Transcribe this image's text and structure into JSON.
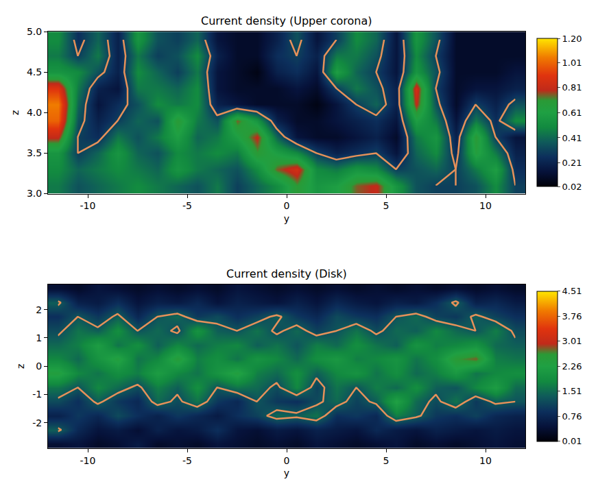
{
  "chart_data": [
    {
      "type": "heatmap",
      "title": "Current density (Upper corona)",
      "x_label": "y",
      "y_label": "z",
      "xlim": [
        -12,
        12
      ],
      "xticks": [
        -10,
        -5,
        0,
        5,
        10
      ],
      "ylim": [
        3,
        5
      ],
      "yticks": [
        {
          "value": 3,
          "label": "3.0"
        },
        3.5,
        {
          "value": 4,
          "label": "4.0"
        },
        4.5,
        {
          "value": 5,
          "label": "5.0"
        }
      ],
      "x": [
        -11.5,
        -10.5,
        -9.5,
        -8.5,
        -7.5,
        -6.5,
        -5.5,
        -4.5,
        -3.5,
        -2.5,
        -1.5,
        -0.5,
        0.5,
        1.5,
        2.5,
        3.5,
        4.5,
        5.5,
        6.5,
        7.5,
        8.5,
        9.5,
        10.5,
        11.5
      ],
      "y": [
        3.1,
        3.3,
        3.5,
        3.7,
        3.9,
        4.1,
        4.3,
        4.5,
        4.7,
        4.9
      ],
      "z": [
        [
          0.45,
          0.35,
          0.4,
          0.45,
          0.5,
          0.45,
          0.4,
          0.35,
          0.45,
          0.3,
          0.4,
          0.5,
          0.7,
          0.55,
          0.6,
          0.75,
          0.8,
          0.55,
          0.35,
          0.3,
          0.3,
          0.35,
          0.5,
          0.3
        ],
        [
          0.5,
          0.4,
          0.45,
          0.5,
          0.45,
          0.4,
          0.55,
          0.45,
          0.4,
          0.35,
          0.5,
          0.75,
          0.85,
          0.5,
          0.45,
          0.55,
          0.5,
          0.3,
          0.35,
          0.4,
          0.3,
          0.45,
          0.6,
          0.25
        ],
        [
          0.55,
          0.3,
          0.4,
          0.55,
          0.4,
          0.35,
          0.5,
          0.45,
          0.5,
          0.45,
          0.7,
          0.6,
          0.5,
          0.3,
          0.2,
          0.25,
          0.3,
          0.15,
          0.4,
          0.5,
          0.25,
          0.65,
          0.45,
          0.2
        ],
        [
          0.8,
          0.3,
          0.25,
          0.45,
          0.35,
          0.45,
          0.6,
          0.4,
          0.45,
          0.6,
          0.8,
          0.4,
          0.15,
          0.1,
          0.1,
          0.15,
          0.2,
          0.1,
          0.45,
          0.55,
          0.2,
          0.7,
          0.3,
          0.15
        ],
        [
          1.0,
          0.35,
          0.2,
          0.3,
          0.4,
          0.35,
          0.7,
          0.45,
          0.35,
          0.75,
          0.55,
          0.2,
          0.1,
          0.1,
          0.15,
          0.2,
          0.25,
          0.15,
          0.6,
          0.45,
          0.15,
          0.45,
          0.25,
          0.5
        ],
        [
          1.05,
          0.4,
          0.15,
          0.25,
          0.35,
          0.5,
          0.45,
          0.5,
          0.2,
          0.15,
          0.1,
          0.1,
          0.1,
          0.05,
          0.15,
          0.3,
          0.4,
          0.2,
          0.8,
          0.35,
          0.1,
          0.3,
          0.2,
          0.35
        ],
        [
          0.9,
          0.45,
          0.2,
          0.15,
          0.45,
          0.45,
          0.4,
          0.5,
          0.15,
          0.1,
          0.1,
          0.1,
          0.15,
          0.1,
          0.3,
          0.45,
          0.35,
          0.2,
          0.85,
          0.3,
          0.1,
          0.15,
          0.15,
          0.2
        ],
        [
          0.55,
          0.5,
          0.35,
          0.2,
          0.5,
          0.4,
          0.3,
          0.45,
          0.15,
          0.1,
          0.05,
          0.2,
          0.25,
          0.15,
          0.6,
          0.4,
          0.3,
          0.15,
          0.55,
          0.35,
          0.1,
          0.1,
          0.1,
          0.15
        ],
        [
          0.45,
          0.3,
          0.45,
          0.2,
          0.45,
          0.3,
          0.35,
          0.5,
          0.2,
          0.1,
          0.1,
          0.25,
          0.3,
          0.2,
          0.45,
          0.45,
          0.35,
          0.15,
          0.5,
          0.3,
          0.1,
          0.1,
          0.1,
          0.1
        ],
        [
          0.5,
          0.25,
          0.4,
          0.2,
          0.55,
          0.35,
          0.3,
          0.4,
          0.15,
          0.1,
          0.1,
          0.2,
          0.35,
          0.15,
          0.3,
          0.5,
          0.4,
          0.15,
          0.55,
          0.35,
          0.1,
          0.1,
          0.1,
          0.1
        ]
      ],
      "colorbar_range": [
        0.02,
        1.2
      ],
      "colorbar_ticks": [
        0.02,
        0.21,
        0.41,
        0.61,
        0.81,
        1.01,
        {
          "value": 1.2,
          "label": "1.20"
        }
      ],
      "contour_level": 0.3
    },
    {
      "type": "heatmap",
      "title": "Current density (Disk)",
      "x_label": "y",
      "y_label": "z",
      "xlim": [
        -12,
        12
      ],
      "xticks": [
        -10,
        -5,
        0,
        5,
        10
      ],
      "ylim": [
        -2.9,
        2.9
      ],
      "yticks": [
        -2,
        -1,
        0,
        1,
        2
      ],
      "x": [
        -11.5,
        -10.5,
        -9.5,
        -8.5,
        -7.5,
        -6.5,
        -5.5,
        -4.5,
        -3.5,
        -2.5,
        -1.5,
        -0.5,
        0.5,
        1.5,
        2.5,
        3.5,
        4.5,
        5.5,
        6.5,
        7.5,
        8.5,
        9.5,
        10.5,
        11.5
      ],
      "y": [
        -2.75,
        -2.25,
        -1.75,
        -1.25,
        -0.75,
        -0.25,
        0.25,
        0.75,
        1.25,
        1.75,
        2.25,
        2.75
      ],
      "z": [
        [
          0.4,
          0.5,
          0.3,
          0.4,
          0.6,
          0.3,
          0.4,
          0.3,
          0.5,
          0.4,
          0.3,
          0.4,
          0.3,
          0.5,
          0.4,
          0.3,
          0.4,
          0.5,
          0.3,
          0.4,
          0.3,
          0.4,
          0.5,
          0.4
        ],
        [
          1.4,
          0.8,
          0.5,
          0.6,
          0.4,
          0.7,
          0.5,
          0.6,
          0.9,
          0.5,
          0.4,
          0.6,
          0.5,
          0.7,
          0.6,
          0.5,
          0.8,
          0.6,
          0.5,
          0.7,
          0.6,
          0.5,
          0.6,
          0.5
        ],
        [
          0.7,
          1.0,
          0.8,
          1.2,
          0.9,
          0.7,
          1.0,
          0.8,
          0.6,
          0.9,
          1.1,
          1.5,
          1.4,
          1.6,
          0.9,
          1.0,
          0.8,
          1.7,
          1.4,
          1.0,
          0.9,
          1.1,
          0.8,
          0.7
        ],
        [
          1.2,
          0.9,
          1.4,
          1.0,
          0.8,
          1.5,
          1.2,
          1.6,
          1.0,
          0.8,
          1.3,
          1.0,
          0.9,
          1.2,
          1.5,
          1.1,
          1.4,
          2.3,
          1.5,
          1.2,
          1.6,
          1.0,
          1.4,
          1.3
        ],
        [
          1.6,
          1.3,
          1.8,
          1.5,
          1.2,
          1.7,
          1.4,
          1.9,
          1.3,
          1.6,
          1.5,
          1.2,
          1.8,
          1.1,
          1.6,
          1.3,
          1.7,
          1.5,
          1.9,
          1.4,
          1.3,
          1.8,
          2.2,
          1.5
        ],
        [
          2.4,
          1.8,
          1.6,
          1.9,
          1.7,
          2.2,
          1.8,
          1.6,
          2.0,
          2.4,
          1.7,
          1.5,
          1.9,
          1.4,
          1.8,
          2.0,
          1.6,
          1.9,
          1.5,
          1.7,
          2.1,
          1.6,
          1.8,
          1.9
        ],
        [
          1.8,
          1.5,
          2.0,
          2.4,
          1.6,
          1.8,
          2.5,
          1.7,
          1.9,
          1.6,
          2.0,
          1.8,
          1.5,
          1.9,
          2.1,
          1.7,
          1.8,
          2.0,
          1.6,
          1.9,
          2.6,
          2.8,
          1.7,
          1.6
        ],
        [
          1.5,
          1.7,
          2.2,
          1.6,
          1.9,
          1.4,
          1.8,
          1.5,
          1.7,
          1.8,
          1.4,
          1.6,
          1.3,
          1.7,
          1.5,
          1.9,
          1.6,
          1.4,
          2.0,
          1.7,
          1.8,
          2.0,
          1.5,
          1.4
        ],
        [
          1.2,
          1.6,
          1.4,
          1.9,
          1.3,
          1.5,
          1.2,
          2.0,
          1.4,
          1.3,
          1.6,
          1.2,
          1.5,
          1.1,
          1.3,
          1.6,
          1.2,
          1.5,
          1.4,
          1.8,
          1.5,
          1.3,
          1.7,
          1.2
        ],
        [
          0.9,
          1.3,
          1.0,
          1.4,
          0.8,
          1.3,
          1.5,
          1.0,
          1.2,
          0.9,
          1.1,
          1.4,
          1.0,
          0.8,
          1.2,
          1.0,
          0.9,
          1.3,
          1.5,
          1.1,
          1.0,
          1.4,
          1.1,
          0.9
        ],
        [
          1.4,
          0.7,
          0.6,
          0.9,
          0.5,
          0.7,
          0.6,
          0.8,
          0.5,
          0.7,
          0.6,
          0.5,
          0.7,
          0.5,
          0.8,
          0.6,
          0.5,
          0.7,
          0.6,
          0.9,
          1.4,
          0.7,
          0.8,
          0.6
        ],
        [
          0.4,
          0.3,
          0.5,
          0.4,
          0.3,
          0.4,
          0.3,
          0.4,
          0.3,
          0.5,
          0.4,
          0.3,
          0.4,
          0.3,
          0.4,
          0.3,
          0.4,
          0.3,
          0.4,
          0.3,
          0.4,
          0.3,
          0.4,
          0.3
        ]
      ],
      "colorbar_range": [
        0.01,
        4.51
      ],
      "colorbar_ticks": [
        0.01,
        0.76,
        1.51,
        2.26,
        3.01,
        3.76,
        4.51
      ],
      "contour_level": 1.3
    }
  ]
}
